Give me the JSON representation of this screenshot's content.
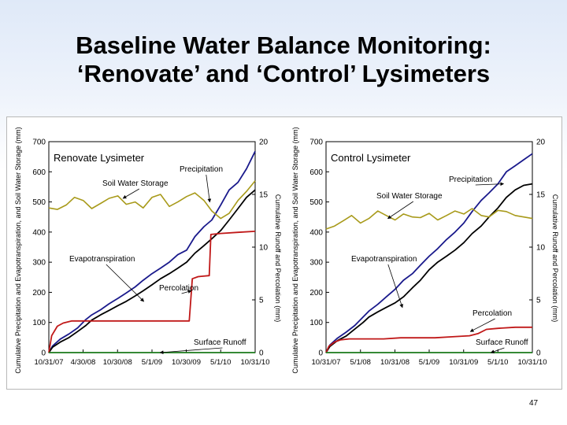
{
  "slide": {
    "title_line1": "Baseline Water Balance Monitoring:",
    "title_line2": "‘Renovate’ and ‘Control’ Lysimeters",
    "page_number": "47"
  },
  "colors": {
    "precipitation": "#1a1a8c",
    "evapotranspiration": "#000000",
    "soil_water_storage": "#a89a1a",
    "percolation": "#c01818",
    "surface_runoff": "#1a7a1a"
  },
  "chart_data": [
    {
      "type": "line",
      "title": "Renovate Lysimeter",
      "ylabel": "Cumulative Precipitation and Evapotranspiration, and Soil Water Storage (mm)",
      "y2label": "Cumulative Runoff and Percolation (mm)",
      "ylim": [
        0,
        700
      ],
      "y2lim": [
        0,
        20
      ],
      "yticks": [
        "0",
        "100",
        "200",
        "300",
        "400",
        "500",
        "600",
        "700"
      ],
      "y2ticks": [
        "0",
        "5",
        "10",
        "15",
        "20"
      ],
      "xlim": [
        "2007-10-31",
        "2010-10-31"
      ],
      "xticks": [
        "10/31/07",
        "4/30/08",
        "10/30/08",
        "5/1/09",
        "10/30/09",
        "5/1/10",
        "10/31/10"
      ],
      "xtick_dates": [
        "2007-10-31",
        "2008-04-30",
        "2008-10-30",
        "2009-05-01",
        "2009-10-30",
        "2010-05-01",
        "2010-10-31"
      ],
      "annotations": [
        {
          "text": "Precipitation",
          "series": "precipitation"
        },
        {
          "text": "Soil Water Storage",
          "series": "soil_water_storage"
        },
        {
          "text": "Evapotranspiration",
          "series": "evapotranspiration"
        },
        {
          "text": "Percolation",
          "series": "percolation"
        },
        {
          "text": "Surface Runoff",
          "series": "surface_runoff"
        }
      ],
      "series": [
        {
          "key": "precipitation",
          "axis": "left",
          "x": [
            "2007-10-31",
            "2007-11-20",
            "2007-12-31",
            "2008-02-15",
            "2008-04-01",
            "2008-05-15",
            "2008-06-15",
            "2008-08-01",
            "2008-09-15",
            "2008-11-01",
            "2008-12-15",
            "2009-02-01",
            "2009-03-15",
            "2009-05-01",
            "2009-06-15",
            "2009-08-01",
            "2009-09-15",
            "2009-11-01",
            "2009-12-15",
            "2010-02-01",
            "2010-03-15",
            "2010-05-01",
            "2010-06-15",
            "2010-08-01",
            "2010-09-15",
            "2010-10-31"
          ],
          "y": [
            0,
            22,
            45,
            62,
            82,
            110,
            125,
            142,
            162,
            180,
            198,
            218,
            240,
            262,
            280,
            300,
            325,
            340,
            385,
            418,
            440,
            490,
            540,
            565,
            610,
            668
          ]
        },
        {
          "key": "evapotranspiration",
          "axis": "left",
          "x": [
            "2007-10-31",
            "2007-11-20",
            "2007-12-31",
            "2008-02-15",
            "2008-04-01",
            "2008-05-15",
            "2008-06-15",
            "2008-08-01",
            "2008-09-15",
            "2008-11-01",
            "2008-12-15",
            "2009-02-01",
            "2009-03-15",
            "2009-05-01",
            "2009-06-15",
            "2009-08-01",
            "2009-09-15",
            "2009-11-01",
            "2009-12-15",
            "2010-02-01",
            "2010-03-15",
            "2010-05-01",
            "2010-06-15",
            "2010-08-01",
            "2010-09-15",
            "2010-10-31"
          ],
          "y": [
            0,
            18,
            35,
            50,
            70,
            90,
            108,
            125,
            140,
            156,
            170,
            188,
            205,
            225,
            245,
            262,
            280,
            300,
            330,
            355,
            378,
            405,
            440,
            478,
            515,
            540
          ]
        },
        {
          "key": "soil_water_storage",
          "axis": "left",
          "x": [
            "2007-10-31",
            "2007-12-15",
            "2008-02-01",
            "2008-03-15",
            "2008-05-01",
            "2008-06-15",
            "2008-08-01",
            "2008-09-15",
            "2008-11-01",
            "2008-12-15",
            "2009-02-01",
            "2009-03-15",
            "2009-05-01",
            "2009-06-15",
            "2009-08-01",
            "2009-09-15",
            "2009-11-01",
            "2009-12-15",
            "2010-02-01",
            "2010-03-15",
            "2010-05-01",
            "2010-06-15",
            "2010-08-01",
            "2010-09-15",
            "2010-10-31"
          ],
          "y": [
            480,
            475,
            490,
            515,
            505,
            478,
            495,
            512,
            520,
            492,
            500,
            480,
            515,
            525,
            485,
            500,
            518,
            530,
            505,
            470,
            445,
            462,
            505,
            535,
            570
          ]
        },
        {
          "key": "percolation",
          "axis": "right",
          "x": [
            "2007-10-31",
            "2007-11-15",
            "2007-12-15",
            "2008-01-15",
            "2008-03-01",
            "2008-06-01",
            "2008-09-01",
            "2008-12-01",
            "2009-03-01",
            "2009-06-01",
            "2009-09-01",
            "2009-11-15",
            "2009-12-01",
            "2010-01-01",
            "2010-03-01",
            "2010-03-10",
            "2010-05-01",
            "2010-08-01",
            "2010-10-31"
          ],
          "y": [
            0,
            1.6,
            2.5,
            2.8,
            3.0,
            3.0,
            3.0,
            3.0,
            3.0,
            3.0,
            3.0,
            3.0,
            7.0,
            7.2,
            7.3,
            11.2,
            11.3,
            11.4,
            11.5
          ]
        },
        {
          "key": "surface_runoff",
          "axis": "right",
          "x": [
            "2007-10-31",
            "2010-10-31"
          ],
          "y": [
            0,
            0
          ]
        }
      ]
    },
    {
      "type": "line",
      "title": "Control Lysimeter",
      "ylabel": "Cumulative Precipitation and Evapotranspiration, and Soil Water Storage (mm)",
      "y2label": "Cumulative Runoff and Percolation (mm)",
      "ylim": [
        0,
        700
      ],
      "y2lim": [
        0,
        20
      ],
      "yticks": [
        "0",
        "100",
        "200",
        "300",
        "400",
        "500",
        "600",
        "700"
      ],
      "y2ticks": [
        "0",
        "5",
        "10",
        "15",
        "20"
      ],
      "xlim": [
        "2007-10-31",
        "2010-10-31"
      ],
      "xticks": [
        "10/31/07",
        "5/1/08",
        "10/31/08",
        "5/1/09",
        "10/31/09",
        "5/1/10",
        "10/31/10"
      ],
      "xtick_dates": [
        "2007-10-31",
        "2008-05-01",
        "2008-10-31",
        "2009-05-01",
        "2009-10-31",
        "2010-05-01",
        "2010-10-31"
      ],
      "annotations": [
        {
          "text": "Precipitation",
          "series": "precipitation"
        },
        {
          "text": "Soil Water Storage",
          "series": "soil_water_storage"
        },
        {
          "text": "Evapotranspiration",
          "series": "evapotranspiration"
        },
        {
          "text": "Percolation",
          "series": "percolation"
        },
        {
          "text": "Surface Runoff",
          "series": "surface_runoff"
        }
      ],
      "series": [
        {
          "key": "precipitation",
          "axis": "left",
          "x": [
            "2007-10-31",
            "2007-11-20",
            "2007-12-31",
            "2008-02-15",
            "2008-04-01",
            "2008-05-15",
            "2008-06-15",
            "2008-08-01",
            "2008-09-15",
            "2008-11-01",
            "2008-12-15",
            "2009-02-01",
            "2009-03-15",
            "2009-05-01",
            "2009-06-15",
            "2009-08-01",
            "2009-09-15",
            "2009-11-01",
            "2009-12-15",
            "2010-02-01",
            "2010-03-15",
            "2010-05-01",
            "2010-06-15",
            "2010-08-01",
            "2010-09-15",
            "2010-10-31"
          ],
          "y": [
            0,
            25,
            48,
            68,
            90,
            118,
            138,
            160,
            185,
            210,
            240,
            262,
            290,
            320,
            345,
            375,
            400,
            430,
            468,
            505,
            530,
            560,
            600,
            620,
            640,
            660
          ]
        },
        {
          "key": "evapotranspiration",
          "axis": "left",
          "x": [
            "2007-10-31",
            "2007-11-20",
            "2007-12-31",
            "2008-02-15",
            "2008-04-01",
            "2008-05-15",
            "2008-06-15",
            "2008-08-01",
            "2008-09-15",
            "2008-11-01",
            "2008-12-15",
            "2009-02-01",
            "2009-03-15",
            "2009-05-01",
            "2009-06-15",
            "2009-08-01",
            "2009-09-15",
            "2009-11-01",
            "2009-12-15",
            "2010-02-01",
            "2010-03-15",
            "2010-05-01",
            "2010-06-15",
            "2010-08-01",
            "2010-09-15",
            "2010-10-31"
          ],
          "y": [
            0,
            20,
            40,
            55,
            78,
            100,
            118,
            135,
            150,
            165,
            185,
            215,
            240,
            275,
            300,
            320,
            340,
            365,
            395,
            420,
            450,
            480,
            515,
            540,
            555,
            560
          ]
        },
        {
          "key": "soil_water_storage",
          "axis": "left",
          "x": [
            "2007-10-31",
            "2007-12-15",
            "2008-02-01",
            "2008-03-15",
            "2008-05-01",
            "2008-06-15",
            "2008-08-01",
            "2008-09-15",
            "2008-11-01",
            "2008-12-15",
            "2009-02-01",
            "2009-03-15",
            "2009-05-01",
            "2009-06-15",
            "2009-08-01",
            "2009-09-15",
            "2009-11-01",
            "2009-12-15",
            "2010-02-01",
            "2010-03-15",
            "2010-05-01",
            "2010-06-15",
            "2010-08-01",
            "2010-09-15",
            "2010-10-31"
          ],
          "y": [
            410,
            420,
            438,
            455,
            430,
            445,
            470,
            455,
            440,
            460,
            450,
            448,
            462,
            440,
            455,
            470,
            460,
            478,
            455,
            450,
            472,
            468,
            455,
            450,
            445
          ]
        },
        {
          "key": "percolation",
          "axis": "right",
          "x": [
            "2007-10-31",
            "2007-11-15",
            "2007-12-15",
            "2008-01-15",
            "2008-03-01",
            "2008-06-01",
            "2008-09-01",
            "2008-12-01",
            "2009-03-01",
            "2009-06-01",
            "2009-09-01",
            "2009-12-01",
            "2010-01-15",
            "2010-03-01",
            "2010-05-01",
            "2010-08-01",
            "2010-10-31"
          ],
          "y": [
            0,
            0.6,
            1.0,
            1.2,
            1.3,
            1.3,
            1.3,
            1.4,
            1.4,
            1.4,
            1.5,
            1.6,
            1.8,
            2.2,
            2.3,
            2.4,
            2.4
          ]
        },
        {
          "key": "surface_runoff",
          "axis": "right",
          "x": [
            "2007-10-31",
            "2010-10-31"
          ],
          "y": [
            0,
            0
          ]
        }
      ]
    }
  ]
}
